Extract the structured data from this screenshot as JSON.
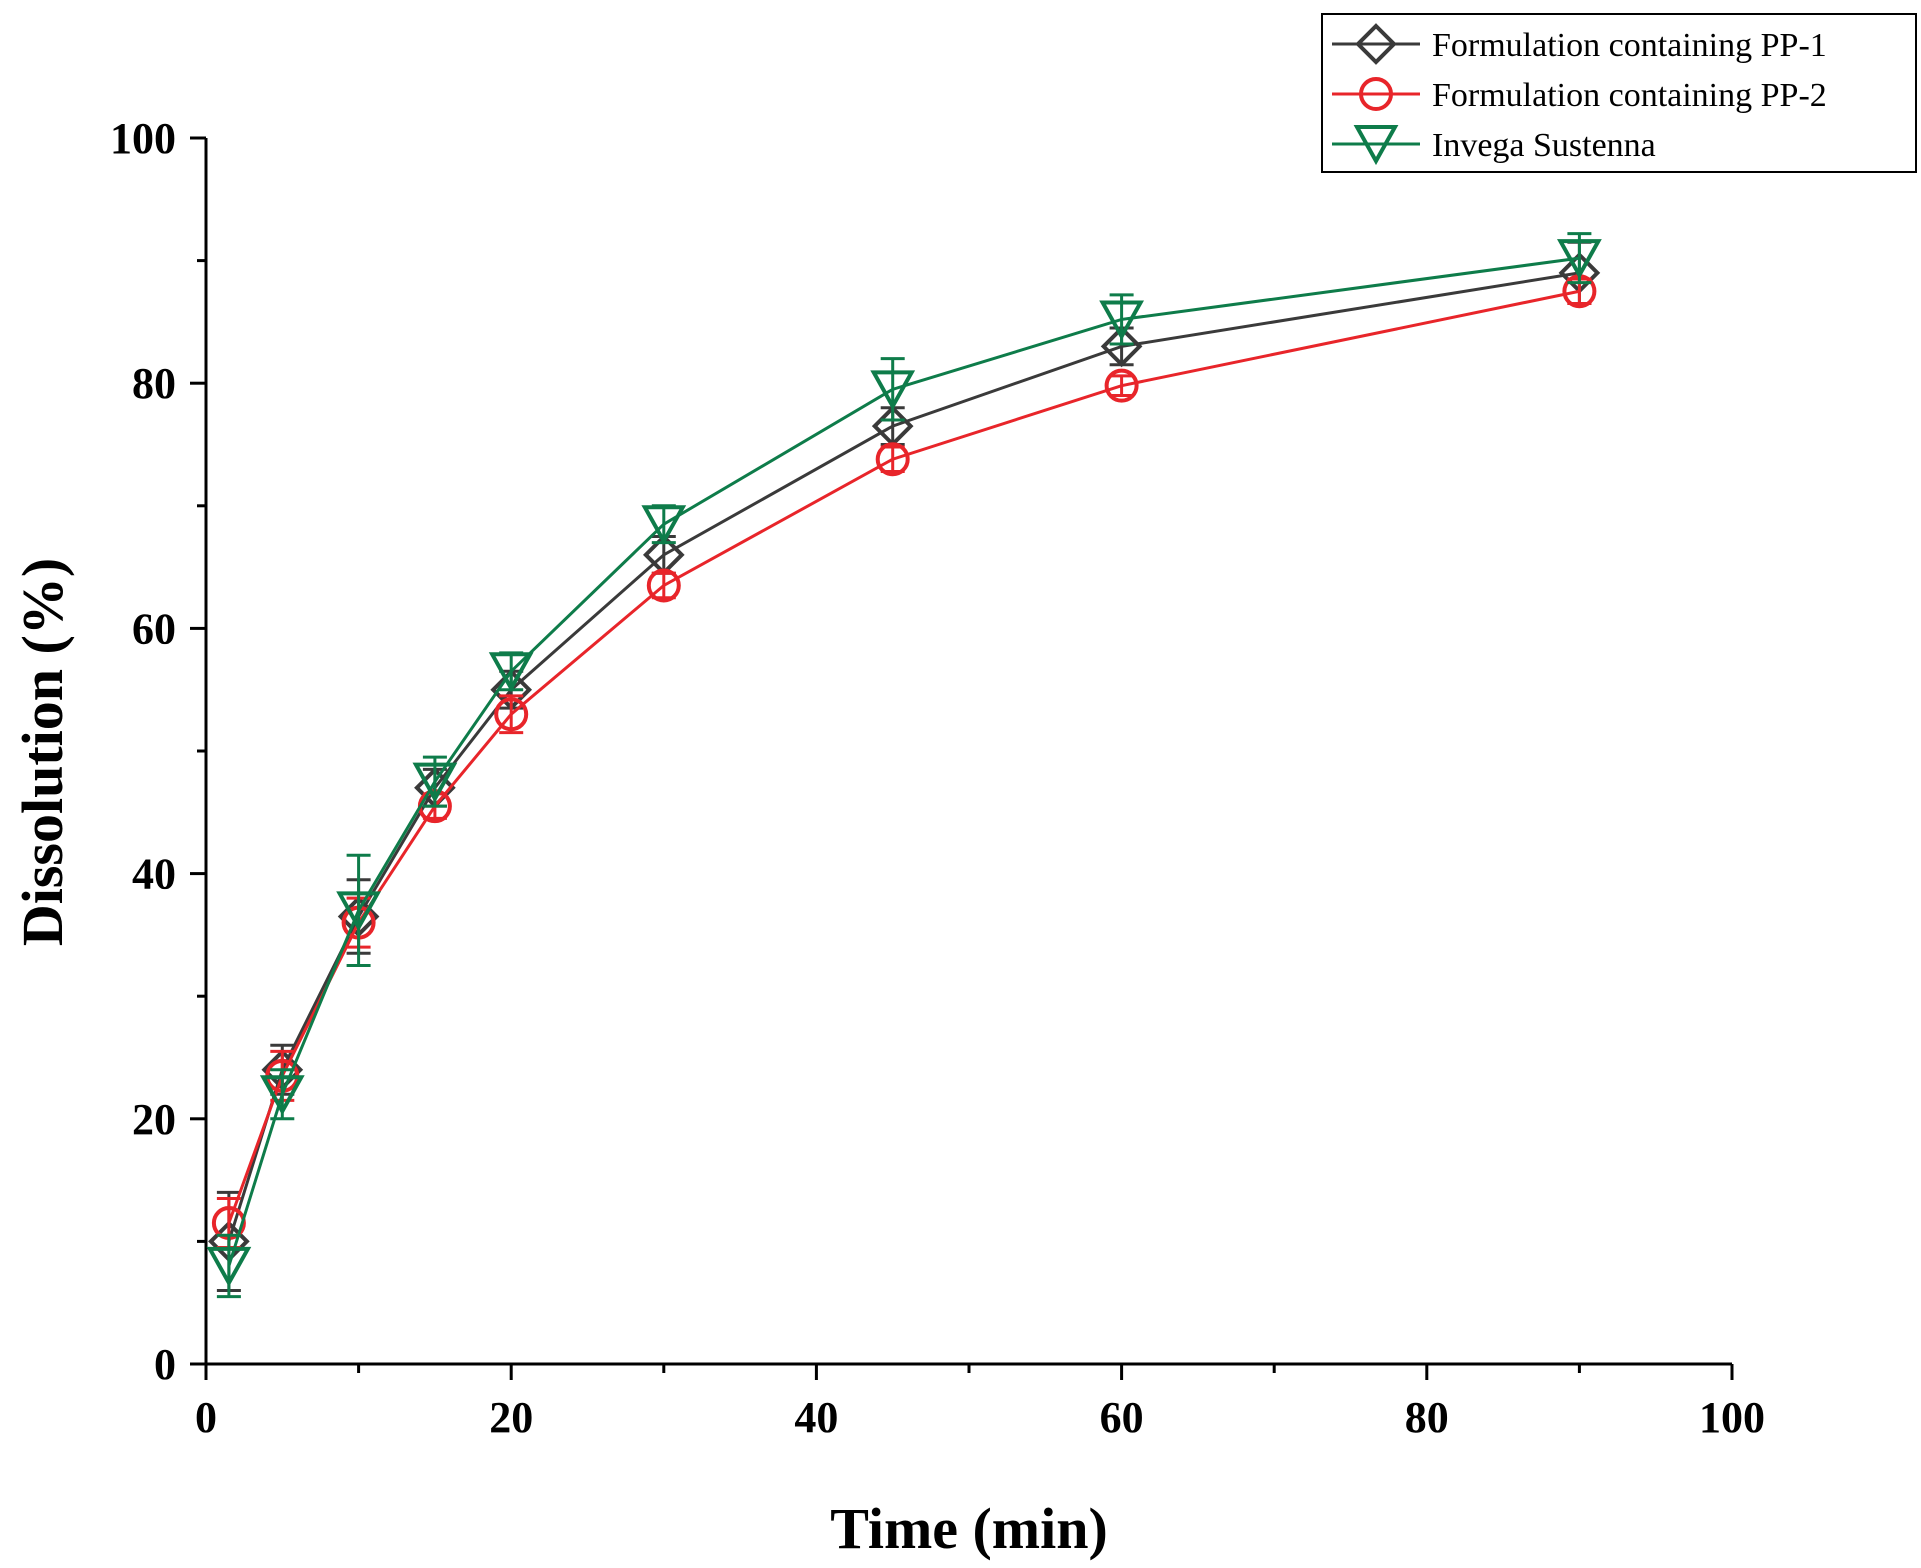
{
  "chart_data": {
    "type": "line",
    "title": "",
    "xlabel": "Time (min)",
    "ylabel": "Dissolution (%)",
    "xlim": [
      0,
      100
    ],
    "ylim": [
      0,
      100
    ],
    "xticks": [
      0,
      20,
      40,
      60,
      80,
      100
    ],
    "yticks": [
      0,
      20,
      40,
      60,
      80,
      100
    ],
    "legend_position": "top-right",
    "x": [
      1.5,
      5,
      10,
      15,
      20,
      30,
      45,
      60,
      90
    ],
    "series": [
      {
        "name": "Formulation containing PP-1",
        "marker": "diamond",
        "color": "#3a3a3a",
        "values": [
          10.0,
          24.0,
          36.5,
          47.0,
          55.0,
          66.0,
          76.5,
          83.0,
          89.0
        ],
        "errors": [
          4.0,
          2.0,
          3.0,
          1.5,
          1.5,
          1.5,
          1.5,
          1.5,
          2.5
        ]
      },
      {
        "name": "Formulation containing PP-2",
        "marker": "circle",
        "color": "#e8252a",
        "values": [
          11.5,
          23.5,
          36.0,
          45.5,
          53.0,
          63.5,
          73.8,
          79.8,
          87.5
        ],
        "errors": [
          2.0,
          2.0,
          2.0,
          1.0,
          1.5,
          1.0,
          1.0,
          0.8,
          1.0
        ]
      },
      {
        "name": "Invega Sustenna",
        "marker": "triangle-down",
        "color": "#0e7c4a",
        "values": [
          8.0,
          22.0,
          37.0,
          47.5,
          56.5,
          68.5,
          79.5,
          85.2,
          90.2
        ],
        "errors": [
          2.5,
          2.0,
          4.5,
          2.0,
          1.5,
          1.5,
          2.5,
          2.0,
          2.0
        ]
      }
    ]
  }
}
